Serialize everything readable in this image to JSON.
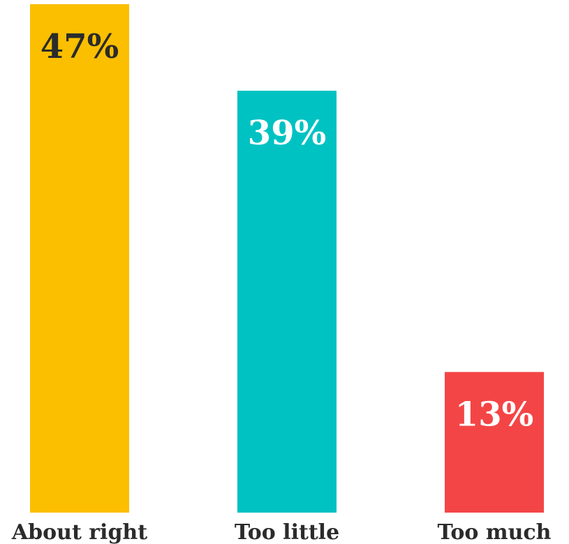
{
  "chart_data": {
    "type": "bar",
    "categories": [
      "About right",
      "Too little",
      "Too much"
    ],
    "values": [
      47,
      39,
      13
    ],
    "value_labels": [
      "47%",
      "39%",
      "13%"
    ],
    "colors": [
      "#fbbf00",
      "#00c2c2",
      "#f44546"
    ],
    "label_colors": [
      "#2b2b2b",
      "#ffffff",
      "#ffffff"
    ],
    "ylim": [
      0,
      47
    ],
    "grid": false,
    "legend": "none"
  }
}
